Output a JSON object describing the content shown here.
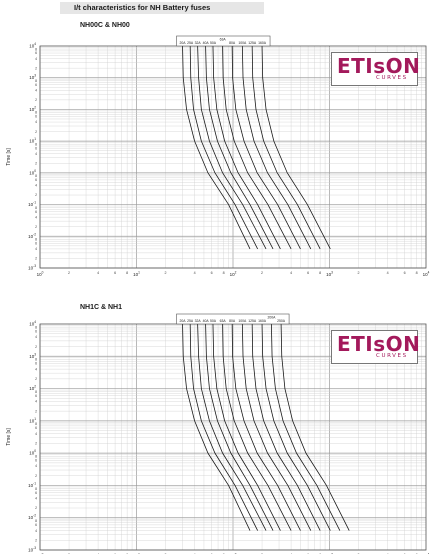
{
  "page": {
    "title": "I/t characteristics for NH Battery fuses",
    "logo": {
      "main": "ETIsON",
      "sub": "CURVES"
    },
    "colors": {
      "accent": "#a3195b",
      "curve": "#1a1a1a",
      "grid": "#cfcfcf"
    }
  },
  "chart_data": [
    {
      "type": "line",
      "title": "NH00C & NH00",
      "xlabel": "",
      "ylabel": "Time [s]",
      "xscale": "log",
      "yscale": "log",
      "xlim": [
        1,
        10000
      ],
      "ylim": [
        0.001,
        10000
      ],
      "grid": true,
      "legend_labels": [
        "20A",
        "25A",
        "32A",
        "40A",
        "50A",
        "63A",
        "80A",
        "100A",
        "125A",
        "160A"
      ],
      "series": [
        {
          "name": "20A",
          "x": [
            30,
            30.5,
            33,
            40,
            55,
            90,
            150
          ],
          "y": [
            10000,
            1000,
            100,
            10,
            1,
            0.1,
            0.004
          ]
        },
        {
          "name": "25A",
          "x": [
            36,
            36.5,
            39,
            47,
            65,
            105,
            180
          ],
          "y": [
            10000,
            1000,
            100,
            10,
            1,
            0.1,
            0.004
          ]
        },
        {
          "name": "32A",
          "x": [
            43,
            44,
            47,
            57,
            78,
            126,
            220
          ],
          "y": [
            10000,
            1000,
            100,
            10,
            1,
            0.1,
            0.004
          ]
        },
        {
          "name": "40A",
          "x": [
            52,
            53,
            57,
            69,
            95,
            150,
            260
          ],
          "y": [
            10000,
            1000,
            100,
            10,
            1,
            0.1,
            0.004
          ]
        },
        {
          "name": "50A",
          "x": [
            62,
            63,
            68,
            82,
            113,
            180,
            310
          ],
          "y": [
            10000,
            1000,
            100,
            10,
            1,
            0.1,
            0.004
          ]
        },
        {
          "name": "63A",
          "x": [
            78,
            79,
            85,
            103,
            142,
            230,
            400
          ],
          "y": [
            10000,
            1000,
            100,
            10,
            1,
            0.1,
            0.004
          ]
        },
        {
          "name": "80A",
          "x": [
            98,
            99,
            107,
            130,
            178,
            290,
            500
          ],
          "y": [
            10000,
            1000,
            100,
            10,
            1,
            0.1,
            0.004
          ]
        },
        {
          "name": "100A",
          "x": [
            125,
            127,
            137,
            165,
            228,
            370,
            640
          ],
          "y": [
            10000,
            1000,
            100,
            10,
            1,
            0.1,
            0.004
          ]
        },
        {
          "name": "125A",
          "x": [
            158,
            160,
            173,
            208,
            287,
            465,
            800
          ],
          "y": [
            10000,
            1000,
            100,
            10,
            1,
            0.1,
            0.004
          ]
        },
        {
          "name": "160A",
          "x": [
            200,
            203,
            220,
            265,
            365,
            590,
            1020
          ],
          "y": [
            10000,
            1000,
            100,
            10,
            1,
            0.1,
            0.004
          ]
        }
      ]
    },
    {
      "type": "line",
      "title": "NH1C & NH1",
      "xlabel": "",
      "ylabel": "Time [s]",
      "xscale": "log",
      "yscale": "log",
      "xlim": [
        1,
        10000
      ],
      "ylim": [
        0.001,
        10000
      ],
      "grid": true,
      "legend_labels": [
        "20A",
        "25A",
        "32A",
        "40A",
        "50A",
        "63A",
        "80A",
        "100A",
        "125A",
        "160A",
        "200A",
        "250A"
      ],
      "series": [
        {
          "name": "20A",
          "x": [
            30,
            30.5,
            33,
            40,
            55,
            90,
            150
          ],
          "y": [
            10000,
            1000,
            100,
            10,
            1,
            0.1,
            0.004
          ]
        },
        {
          "name": "25A",
          "x": [
            36,
            36.5,
            39,
            47,
            65,
            105,
            180
          ],
          "y": [
            10000,
            1000,
            100,
            10,
            1,
            0.1,
            0.004
          ]
        },
        {
          "name": "32A",
          "x": [
            43,
            44,
            47,
            57,
            78,
            126,
            220
          ],
          "y": [
            10000,
            1000,
            100,
            10,
            1,
            0.1,
            0.004
          ]
        },
        {
          "name": "40A",
          "x": [
            52,
            53,
            57,
            69,
            95,
            150,
            260
          ],
          "y": [
            10000,
            1000,
            100,
            10,
            1,
            0.1,
            0.004
          ]
        },
        {
          "name": "50A",
          "x": [
            62,
            63,
            68,
            82,
            113,
            180,
            310
          ],
          "y": [
            10000,
            1000,
            100,
            10,
            1,
            0.1,
            0.004
          ]
        },
        {
          "name": "63A",
          "x": [
            78,
            79,
            85,
            103,
            142,
            230,
            400
          ],
          "y": [
            10000,
            1000,
            100,
            10,
            1,
            0.1,
            0.004
          ]
        },
        {
          "name": "80A",
          "x": [
            98,
            99,
            107,
            130,
            178,
            290,
            500
          ],
          "y": [
            10000,
            1000,
            100,
            10,
            1,
            0.1,
            0.004
          ]
        },
        {
          "name": "100A",
          "x": [
            125,
            127,
            137,
            165,
            228,
            370,
            640
          ],
          "y": [
            10000,
            1000,
            100,
            10,
            1,
            0.1,
            0.004
          ]
        },
        {
          "name": "125A",
          "x": [
            158,
            160,
            173,
            208,
            287,
            465,
            800
          ],
          "y": [
            10000,
            1000,
            100,
            10,
            1,
            0.1,
            0.004
          ]
        },
        {
          "name": "160A",
          "x": [
            200,
            203,
            220,
            265,
            365,
            590,
            1020
          ],
          "y": [
            10000,
            1000,
            100,
            10,
            1,
            0.1,
            0.004
          ]
        },
        {
          "name": "200A",
          "x": [
            250,
            254,
            275,
            330,
            455,
            740,
            1280
          ],
          "y": [
            10000,
            1000,
            100,
            10,
            1,
            0.1,
            0.004
          ]
        },
        {
          "name": "250A",
          "x": [
            315,
            320,
            345,
            415,
            570,
            930,
            1600
          ],
          "y": [
            10000,
            1000,
            100,
            10,
            1,
            0.1,
            0.004
          ]
        }
      ]
    }
  ]
}
